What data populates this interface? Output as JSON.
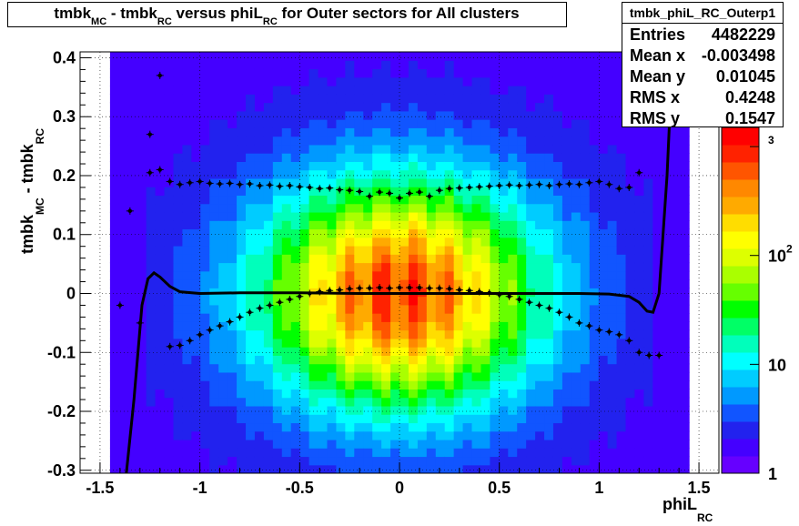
{
  "chart_data": {
    "type": "heatmap",
    "title": {
      "parts": [
        {
          "text": "tmbk",
          "sub": "MC"
        },
        {
          "text": " - tmbk",
          "sub": "RC"
        },
        {
          "text": " versus phiL",
          "sub": "RC"
        },
        {
          "text": " for Outer sectors for All clusters",
          "sub": ""
        }
      ]
    },
    "xlabel": {
      "text": "phiL",
      "sub": "RC"
    },
    "ylabel": {
      "parts": [
        {
          "text": "tmbk",
          "sub": "MC"
        },
        {
          "text": " - tmbk",
          "sub": "RC"
        }
      ]
    },
    "xlim": [
      -1.6,
      1.6
    ],
    "ylim": [
      -0.305,
      0.41
    ],
    "x_ticks": [
      "-1.5",
      "-1",
      "-0.5",
      "0",
      "0.5",
      "1",
      "1.5"
    ],
    "x_tick_values": [
      -1.5,
      -1,
      -0.5,
      0,
      0.5,
      1,
      1.5
    ],
    "y_ticks": [
      "-0.3",
      "-0.2",
      "-0.1",
      "0",
      "0.1",
      "0.2",
      "0.3",
      "0.4"
    ],
    "y_tick_values": [
      -0.3,
      -0.2,
      -0.1,
      0,
      0.1,
      0.2,
      0.3,
      0.4
    ],
    "grid": true,
    "z_scale": "log",
    "colorbar_ticks": [
      {
        "label": "1",
        "exp": "",
        "value": 1
      },
      {
        "label": "10",
        "exp": "",
        "value": 10
      },
      {
        "label": "10",
        "exp": "2",
        "value": 100
      },
      {
        "label": "",
        "exp": "3",
        "value": 1000
      }
    ],
    "colorbar_range": [
      1,
      1500
    ],
    "palette": [
      "#6600ff",
      "#4400ff",
      "#2222ee",
      "#1155ff",
      "#0099ff",
      "#00ccff",
      "#00ffff",
      "#00ffbb",
      "#00ff66",
      "#00ff00",
      "#66ff00",
      "#aaff00",
      "#ddff00",
      "#ffff00",
      "#ffdd00",
      "#ffaa00",
      "#ff8800",
      "#ff5500",
      "#ff2200",
      "#ff0000"
    ],
    "upper_profile": {
      "x": [
        -1.25,
        -1.2,
        -1.15,
        -1.1,
        -1.05,
        -1.0,
        -0.95,
        -0.9,
        -0.85,
        -0.8,
        -0.75,
        -0.7,
        -0.65,
        -0.6,
        -0.55,
        -0.5,
        -0.45,
        -0.4,
        -0.35,
        -0.3,
        -0.25,
        -0.2,
        -0.15,
        -0.1,
        -0.05,
        0.0,
        0.05,
        0.1,
        0.15,
        0.2,
        0.25,
        0.3,
        0.35,
        0.4,
        0.45,
        0.5,
        0.55,
        0.6,
        0.65,
        0.7,
        0.75,
        0.8,
        0.85,
        0.9,
        0.95,
        1.0,
        1.05,
        1.1,
        1.15,
        1.2
      ],
      "y": [
        0.205,
        0.21,
        0.19,
        0.185,
        0.188,
        0.19,
        0.187,
        0.186,
        0.187,
        0.185,
        0.186,
        0.183,
        0.184,
        0.182,
        0.183,
        0.181,
        0.18,
        0.178,
        0.179,
        0.176,
        0.175,
        0.173,
        0.165,
        0.172,
        0.17,
        0.162,
        0.17,
        0.172,
        0.165,
        0.175,
        0.178,
        0.179,
        0.18,
        0.181,
        0.182,
        0.183,
        0.184,
        0.183,
        0.184,
        0.185,
        0.183,
        0.185,
        0.186,
        0.185,
        0.188,
        0.19,
        0.185,
        0.178,
        0.18,
        0.205
      ]
    },
    "lower_profile": {
      "x": [
        -1.4,
        -1.35,
        -1.3,
        -1.25,
        -1.2,
        -1.15,
        -1.1,
        -1.05,
        -1.0,
        -0.95,
        -0.9,
        -0.85,
        -0.8,
        -0.75,
        -0.7,
        -0.65,
        -0.6,
        -0.55,
        -0.5,
        -0.45,
        -0.4,
        -0.35,
        -0.3,
        -0.25,
        -0.2,
        -0.15,
        -0.1,
        -0.05,
        0.0,
        0.05,
        0.1,
        0.15,
        0.2,
        0.25,
        0.3,
        0.35,
        0.4,
        0.45,
        0.5,
        0.55,
        0.6,
        0.65,
        0.7,
        0.75,
        0.8,
        0.85,
        0.9,
        0.95,
        1.0,
        1.05,
        1.1,
        1.15,
        1.2,
        1.25,
        1.3
      ],
      "y": [
        -0.02,
        0.14,
        -0.05,
        0.27,
        0.37,
        -0.09,
        -0.088,
        -0.08,
        -0.07,
        -0.062,
        -0.055,
        -0.048,
        -0.04,
        -0.032,
        -0.025,
        -0.02,
        -0.015,
        -0.01,
        -0.005,
        0.0,
        0.003,
        0.005,
        0.006,
        0.008,
        0.009,
        0.009,
        0.01,
        0.009,
        0.01,
        0.01,
        0.01,
        0.009,
        0.009,
        0.008,
        0.006,
        0.005,
        0.003,
        0.001,
        -0.002,
        -0.005,
        -0.01,
        -0.015,
        -0.02,
        -0.025,
        -0.032,
        -0.04,
        -0.05,
        -0.055,
        -0.062,
        -0.065,
        -0.07,
        -0.08,
        -0.1,
        -0.105,
        -0.105
      ]
    },
    "fit_curve": {
      "x": [
        -1.37,
        -1.33,
        -1.29,
        -1.26,
        -1.23,
        -1.2,
        -1.15,
        -1.1,
        -1.0,
        -0.8,
        -0.5,
        -0.2,
        0.0,
        0.3,
        0.6,
        0.9,
        1.05,
        1.15,
        1.2,
        1.24,
        1.27,
        1.3,
        1.34,
        1.37
      ],
      "y": [
        -0.31,
        -0.18,
        -0.02,
        0.025,
        0.035,
        0.028,
        0.012,
        0.003,
        0.0,
        0.001,
        0.001,
        0.0,
        0.0,
        0.0,
        0.0,
        0.0,
        -0.001,
        -0.005,
        -0.015,
        -0.03,
        -0.032,
        0.0,
        0.2,
        0.42
      ]
    }
  },
  "stats": {
    "name": "tmbk_phiL_RC_Outerp1",
    "rows": [
      {
        "label": "Entries",
        "value": "4482229"
      },
      {
        "label": "Mean x",
        "value": "-0.003498"
      },
      {
        "label": "Mean y",
        "value": "0.01045"
      },
      {
        "label": "RMS x",
        "value": "0.4248"
      },
      {
        "label": "RMS y",
        "value": "0.1547"
      }
    ]
  }
}
